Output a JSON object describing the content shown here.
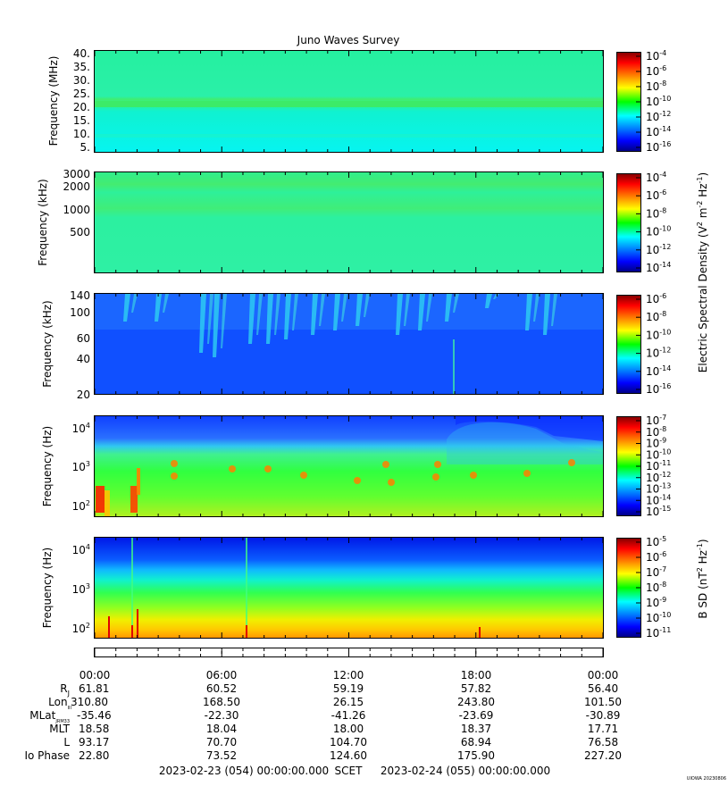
{
  "title": "Juno Waves Survey",
  "panels": [
    {
      "ylabel": "Frequency (MHz)",
      "ticks": [
        "40.",
        "35.",
        "30.",
        "25.",
        "20.",
        "15.",
        "10.",
        "5."
      ],
      "cbar": [
        "-4",
        "-6",
        "-8",
        "-10",
        "-12",
        "-14",
        "-16"
      ]
    },
    {
      "ylabel": "Frequency (kHz)",
      "ticks": [
        "3000",
        "2000",
        "1000",
        "500"
      ],
      "cbar": [
        "-4",
        "-6",
        "-8",
        "-10",
        "-12",
        "-14"
      ]
    },
    {
      "ylabel": "Frequency (kHz)",
      "ticks": [
        "140",
        "100",
        "60",
        "40",
        "20"
      ],
      "cbar": [
        "-6",
        "-8",
        "-10",
        "-12",
        "-14",
        "-16"
      ]
    },
    {
      "ylabel": "Frequency (Hz)",
      "ticks": [
        "4",
        "3",
        "2"
      ],
      "cbar": [
        "-7",
        "-8",
        "-9",
        "-10",
        "-11",
        "-12",
        "-13",
        "-14",
        "-15"
      ]
    },
    {
      "ylabel": "Frequency (Hz)",
      "ticks": [
        "4",
        "3",
        "2"
      ],
      "cbar": [
        "-5",
        "-6",
        "-7",
        "-8",
        "-9",
        "-10",
        "-11"
      ]
    }
  ],
  "cbar_base": "10",
  "tick_base": "10",
  "e_density_label": "Electric Spectral Density (V",
  "e_density_mid": " m",
  "e_density_end": " Hz",
  "e_sup_2": "2",
  "e_sup_m2": "-2",
  "e_sup_m1": "-1",
  "b_label": "B SD (nT",
  "b_label_end": " Hz",
  "b_sup_2": "2",
  "b_sup_m1": "-1",
  "ephemeris": {
    "times": [
      "00:00",
      "06:00",
      "12:00",
      "18:00",
      "00:00"
    ],
    "rows": [
      {
        "label": "R",
        "sub": "J",
        "values": [
          "61.81",
          "60.52",
          "59.19",
          "57.82",
          "56.40"
        ]
      },
      {
        "label": "Lon",
        "sub": "III",
        "values": [
          "310.80",
          "168.50",
          "26.15",
          "243.80",
          "101.50"
        ]
      },
      {
        "label": "MLat",
        "sub": "JRM33",
        "values": [
          "-35.46",
          "-22.30",
          "-41.26",
          "-23.69",
          "-30.89"
        ]
      },
      {
        "label": "MLT",
        "sub": "",
        "values": [
          "18.58",
          "18.04",
          "18.00",
          "18.37",
          "17.71"
        ]
      },
      {
        "label": "L",
        "sub": "",
        "values": [
          "93.17",
          "70.70",
          "104.70",
          "68.94",
          "76.58"
        ]
      },
      {
        "label": "Io Phase",
        "sub": "",
        "values": [
          "22.80",
          "73.52",
          "124.60",
          "175.90",
          "227.20"
        ]
      }
    ]
  },
  "footer": {
    "start": "2023-02-23 (054) 00:00:00.000",
    "scet": "SCET",
    "end": "2023-02-24 (055) 00:00:00.000"
  },
  "watermark": "UIOWA 20230806",
  "chart_data": {
    "type": "heatmap",
    "title": "Juno Waves Survey",
    "x_range": [
      "2023-02-23 00:00",
      "2023-02-24 00:00"
    ],
    "x_tick_labels": [
      "00:00",
      "06:00",
      "12:00",
      "18:00",
      "00:00"
    ],
    "panels": [
      {
        "ylabel": "Frequency (MHz)",
        "yrange": [
          3,
          41
        ],
        "yscale": "linear",
        "zrange_log10": [
          -16,
          -4
        ]
      },
      {
        "ylabel": "Frequency (kHz)",
        "yrange": [
          100,
          3000
        ],
        "yscale": "log",
        "zrange_log10": [
          -15,
          -3
        ]
      },
      {
        "ylabel": "Frequency (kHz)",
        "yrange": [
          20,
          140
        ],
        "yscale": "log",
        "zrange_log10": [
          -16,
          -6
        ]
      },
      {
        "ylabel": "Frequency (Hz)",
        "yrange": [
          50,
          20000
        ],
        "yscale": "log",
        "zrange_log10": [
          -15,
          -7
        ]
      },
      {
        "ylabel": "Frequency (Hz)",
        "yrange": [
          50,
          20000
        ],
        "yscale": "log",
        "zrange_log10": [
          -11,
          -4.5
        ]
      }
    ],
    "colorbar_labels": [
      "Electric Spectral Density (V2 m-2 Hz-1)",
      "B SD (nT2 Hz-1)"
    ],
    "grid": false
  }
}
